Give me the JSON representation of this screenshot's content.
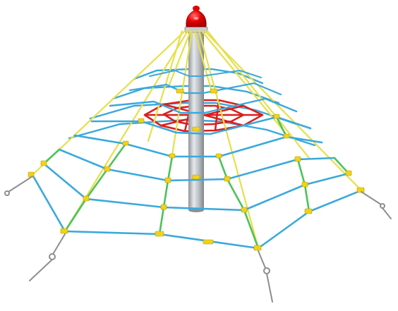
{
  "scene": {
    "subject": "rope-pyramid-climbing-net",
    "colors": {
      "background": "#ffffff",
      "mast": "#a9aeb3",
      "mast_highlight": "#e6e9ec",
      "top_cap": "#e60000",
      "main_cables": "#e7df4a",
      "net_blue": "#3aa9dc",
      "net_green": "#4cc35a",
      "inner_red_web": "#d91f1f",
      "connectors": "#f1d21a",
      "anchors": "#8e8e8e"
    }
  }
}
